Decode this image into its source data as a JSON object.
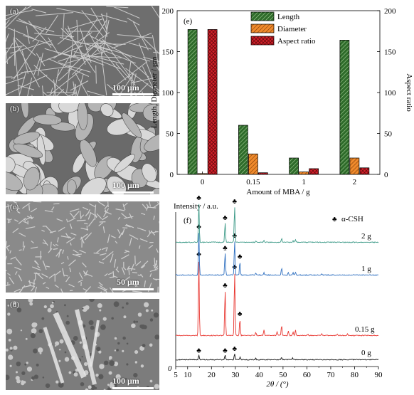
{
  "panels": {
    "a": {
      "label": "(a)",
      "scale": "100 μm"
    },
    "b": {
      "label": "(b)",
      "scale": "100 μm"
    },
    "c": {
      "label": "(c)",
      "scale": "50 μm"
    },
    "d": {
      "label": "(d)",
      "scale": "100 μm"
    }
  },
  "chart_data": [
    {
      "type": "bar",
      "panel_label": "(e)",
      "categories": [
        "0",
        "0.15",
        "1",
        "2"
      ],
      "series": [
        {
          "name": "Length",
          "values": [
            177,
            60,
            20,
            164
          ],
          "color": "#2e6b2a",
          "pattern": "diagonal-hatch"
        },
        {
          "name": "Diameter",
          "values": [
            1,
            25,
            3,
            20
          ],
          "color": "#f08a2c",
          "pattern": "diagonal-hatch"
        },
        {
          "name": "Aspect ratio",
          "values": [
            177,
            2,
            7,
            8
          ],
          "color": "#d4202a",
          "pattern": "crosshatch",
          "axis": "right"
        }
      ],
      "xlabel": "Amount of MBA / g",
      "ylabel": "Length, Diameter / μm",
      "y2label": "Aspect ratio",
      "ylim": [
        0,
        200
      ],
      "y2lim": [
        0,
        200
      ],
      "yticks": [
        0,
        50,
        100,
        150,
        200
      ],
      "legend_position": "top-center"
    },
    {
      "type": "line",
      "panel_label": "(f)",
      "xlabel": "2θ / (°)",
      "ylabel": "Intensity / a.u.",
      "xlim": [
        5,
        90
      ],
      "xticks": [
        5,
        10,
        20,
        30,
        40,
        50,
        60,
        70,
        80,
        90
      ],
      "legend": {
        "marker": "♣",
        "label": "α-CSH"
      },
      "peak_marker": "♣",
      "origin_label": "0",
      "series": [
        {
          "name": "0 g",
          "color": "#111111",
          "peaks": [
            [
              14.7,
              0.06
            ],
            [
              25.7,
              0.06
            ],
            [
              29.7,
              0.08
            ],
            [
              32.0,
              0.03
            ],
            [
              38.6,
              0.02
            ],
            [
              49.4,
              0.03
            ],
            [
              54.0,
              0.02
            ]
          ],
          "marked": [
            14.7,
            25.7,
            29.7
          ]
        },
        {
          "name": "0.15 g",
          "color": "#e8352f",
          "peaks": [
            [
              14.7,
              0.98
            ],
            [
              25.7,
              0.58
            ],
            [
              29.7,
              0.82
            ],
            [
              31.9,
              0.22
            ],
            [
              38.6,
              0.04
            ],
            [
              42.0,
              0.07
            ],
            [
              47.5,
              0.05
            ],
            [
              49.4,
              0.14
            ],
            [
              52.2,
              0.06
            ],
            [
              54.2,
              0.05
            ],
            [
              55.2,
              0.07
            ],
            [
              60.4,
              0.02
            ],
            [
              66.2,
              0.03
            ],
            [
              72.8,
              0.02
            ],
            [
              77.0,
              0.02
            ]
          ],
          "marked": [
            14.7,
            25.7,
            29.7,
            31.9
          ]
        },
        {
          "name": "1 g",
          "color": "#2e6fc0",
          "peaks": [
            [
              14.7,
              0.88
            ],
            [
              25.7,
              0.45
            ],
            [
              29.7,
              0.7
            ],
            [
              31.9,
              0.28
            ],
            [
              38.6,
              0.04
            ],
            [
              42.0,
              0.05
            ],
            [
              49.4,
              0.14
            ],
            [
              52.2,
              0.06
            ],
            [
              54.2,
              0.05
            ],
            [
              55.2,
              0.06
            ],
            [
              66.2,
              0.02
            ]
          ],
          "marked": [
            14.7,
            25.7,
            29.7,
            31.9
          ]
        },
        {
          "name": "2 g",
          "color": "#3d9a88",
          "peaks": [
            [
              14.7,
              0.8
            ],
            [
              25.7,
              0.4
            ],
            [
              29.7,
              0.73
            ],
            [
              38.6,
              0.03
            ],
            [
              42.0,
              0.04
            ],
            [
              49.4,
              0.08
            ],
            [
              54.2,
              0.04
            ],
            [
              55.2,
              0.05
            ]
          ],
          "marked": [
            14.7,
            25.7,
            29.7
          ]
        }
      ]
    }
  ]
}
